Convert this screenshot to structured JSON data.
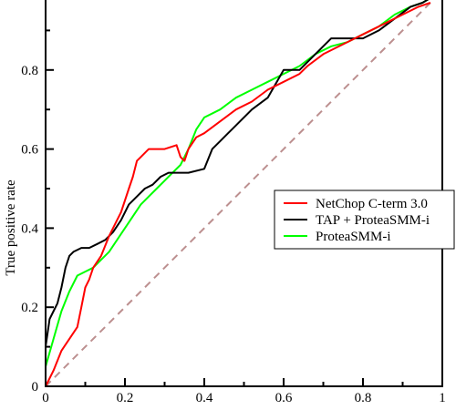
{
  "chart_data": {
    "type": "line",
    "title": "",
    "xlabel": "",
    "ylabel": "True positive rate",
    "xlim": [
      0,
      1
    ],
    "ylim": [
      0,
      1
    ],
    "x_ticks": [
      0,
      0.2,
      0.4,
      0.6,
      0.8,
      1
    ],
    "x_tick_labels": [
      "0",
      "0.2",
      "0.4",
      "0.6",
      "0.8",
      "1"
    ],
    "y_ticks": [
      0,
      0.2,
      0.4,
      0.6,
      0.8
    ],
    "y_tick_labels": [
      "0",
      "0.2",
      "0.4",
      "0.6",
      "0.8"
    ],
    "grid": false,
    "legend_position": "right",
    "diagonal": {
      "x": [
        0,
        1
      ],
      "y": [
        0,
        1
      ],
      "color": "#bc8f8f",
      "style": "dashed"
    },
    "series": [
      {
        "name": "NetChop C-term 3.0",
        "color": "#ff0000",
        "x": [
          0.0,
          0.02,
          0.04,
          0.06,
          0.08,
          0.09,
          0.1,
          0.11,
          0.12,
          0.14,
          0.16,
          0.18,
          0.19,
          0.2,
          0.21,
          0.22,
          0.23,
          0.24,
          0.26,
          0.28,
          0.3,
          0.33,
          0.34,
          0.35,
          0.36,
          0.38,
          0.4,
          0.44,
          0.48,
          0.52,
          0.56,
          0.6,
          0.64,
          0.66,
          0.7,
          0.76,
          0.8,
          0.86,
          0.9,
          0.94,
          0.97
        ],
        "y": [
          0.0,
          0.04,
          0.09,
          0.12,
          0.15,
          0.2,
          0.25,
          0.27,
          0.3,
          0.33,
          0.38,
          0.42,
          0.44,
          0.47,
          0.5,
          0.53,
          0.57,
          0.58,
          0.6,
          0.6,
          0.6,
          0.61,
          0.58,
          0.57,
          0.6,
          0.63,
          0.64,
          0.67,
          0.7,
          0.72,
          0.75,
          0.77,
          0.79,
          0.81,
          0.84,
          0.87,
          0.89,
          0.92,
          0.94,
          0.96,
          0.97
        ]
      },
      {
        "name": "TAP + ProteaSMM-i",
        "color": "#000000",
        "x": [
          0.0,
          0.01,
          0.02,
          0.03,
          0.04,
          0.05,
          0.06,
          0.07,
          0.09,
          0.11,
          0.13,
          0.15,
          0.17,
          0.19,
          0.21,
          0.23,
          0.25,
          0.27,
          0.29,
          0.31,
          0.33,
          0.36,
          0.4,
          0.42,
          0.44,
          0.46,
          0.48,
          0.52,
          0.56,
          0.6,
          0.64,
          0.68,
          0.72,
          0.76,
          0.8,
          0.84,
          0.88,
          0.92,
          0.95,
          1.0
        ],
        "y": [
          0.1,
          0.17,
          0.19,
          0.21,
          0.25,
          0.3,
          0.33,
          0.34,
          0.35,
          0.35,
          0.36,
          0.37,
          0.39,
          0.42,
          0.46,
          0.48,
          0.5,
          0.51,
          0.53,
          0.54,
          0.54,
          0.54,
          0.55,
          0.6,
          0.62,
          0.64,
          0.66,
          0.7,
          0.73,
          0.8,
          0.8,
          0.84,
          0.88,
          0.88,
          0.88,
          0.9,
          0.93,
          0.96,
          0.97,
          1.0
        ]
      },
      {
        "name": "ProteaSMM-i",
        "color": "#00ff00",
        "x": [
          0.0,
          0.02,
          0.04,
          0.06,
          0.08,
          0.1,
          0.12,
          0.14,
          0.16,
          0.18,
          0.2,
          0.22,
          0.24,
          0.26,
          0.28,
          0.3,
          0.32,
          0.34,
          0.36,
          0.38,
          0.4,
          0.44,
          0.48,
          0.52,
          0.56,
          0.6,
          0.64,
          0.68,
          0.72,
          0.76,
          0.8,
          0.84,
          0.88,
          0.92,
          0.95,
          1.0
        ],
        "y": [
          0.05,
          0.12,
          0.19,
          0.24,
          0.28,
          0.29,
          0.3,
          0.32,
          0.34,
          0.37,
          0.4,
          0.43,
          0.46,
          0.48,
          0.5,
          0.52,
          0.54,
          0.56,
          0.6,
          0.65,
          0.68,
          0.7,
          0.73,
          0.75,
          0.77,
          0.79,
          0.81,
          0.84,
          0.86,
          0.87,
          0.89,
          0.91,
          0.94,
          0.96,
          0.97,
          1.0
        ]
      }
    ]
  }
}
